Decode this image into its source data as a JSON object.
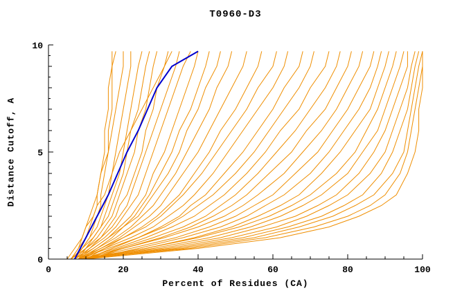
{
  "chart_data": {
    "type": "line",
    "title": "T0960-D3",
    "xlabel": "Percent of Residues (CA)",
    "ylabel": "Distance Cutoff, A",
    "xlim": [
      0,
      100
    ],
    "ylim": [
      0,
      10
    ],
    "x_ticks": [
      0,
      20,
      40,
      60,
      80,
      100
    ],
    "y_ticks": [
      0,
      5,
      10
    ],
    "x_minor_step": 5,
    "y_minor_step": 0.5,
    "grid": "off",
    "legend": "none",
    "colors": {
      "model": "#ef8e00",
      "highlight": "#0000cd",
      "axis": "#000000",
      "background": "#ffffff"
    },
    "y_grid": [
      0,
      0.5,
      1,
      1.5,
      2,
      2.5,
      3,
      4,
      5,
      6,
      7,
      8,
      9,
      9.7
    ],
    "highlight_series": {
      "x": [
        7,
        8.5,
        10,
        11.5,
        13,
        14.5,
        16,
        18.5,
        21,
        24,
        26.5,
        29,
        33,
        40
      ]
    },
    "series": [
      {
        "x": [
          6,
          8,
          10,
          11,
          12,
          13,
          13,
          14,
          15,
          15,
          16,
          16,
          17,
          17
        ]
      },
      {
        "x": [
          7,
          9,
          11,
          12,
          13,
          14,
          14,
          15,
          16,
          16,
          17,
          17,
          17,
          18
        ]
      },
      {
        "x": [
          6,
          8,
          9,
          10,
          11,
          12,
          13,
          14,
          16,
          17,
          18,
          19,
          20,
          20
        ]
      },
      {
        "x": [
          7,
          9,
          11,
          13,
          14,
          15,
          16,
          17,
          18,
          19,
          20,
          21,
          22,
          22
        ]
      },
      {
        "x": [
          8,
          10,
          12,
          14,
          15,
          16,
          17,
          19,
          20,
          21,
          22,
          23,
          24,
          25
        ]
      },
      {
        "x": [
          6,
          9,
          12,
          14,
          16,
          17,
          18,
          20,
          21,
          22,
          24,
          25,
          26,
          27
        ]
      },
      {
        "x": [
          7,
          10,
          13,
          15,
          17,
          18,
          19,
          21,
          23,
          24,
          26,
          27,
          28,
          29
        ]
      },
      {
        "x": [
          8,
          11,
          14,
          16,
          18,
          19,
          21,
          23,
          25,
          26,
          28,
          29,
          31,
          32
        ]
      },
      {
        "x": [
          6,
          10,
          14,
          17,
          19,
          21,
          22,
          24,
          26,
          28,
          30,
          32,
          34,
          35
        ]
      },
      {
        "x": [
          7,
          11,
          15,
          18,
          20,
          22,
          24,
          26,
          28,
          30,
          32,
          34,
          36,
          38
        ]
      },
      {
        "x": [
          8,
          12,
          16,
          19,
          22,
          24,
          26,
          28,
          31,
          33,
          35,
          37,
          39,
          40
        ]
      },
      {
        "x": [
          9,
          13,
          17,
          20,
          23,
          25,
          27,
          30,
          33,
          35,
          38,
          40,
          42,
          43
        ]
      },
      {
        "x": [
          7,
          12,
          16,
          20,
          24,
          26,
          28,
          32,
          35,
          37,
          40,
          42,
          45,
          46
        ]
      },
      {
        "x": [
          8,
          13,
          18,
          22,
          25,
          28,
          30,
          34,
          37,
          40,
          43,
          45,
          48,
          49
        ]
      },
      {
        "x": [
          9,
          14,
          19,
          23,
          27,
          30,
          32,
          36,
          40,
          43,
          46,
          49,
          52,
          53
        ]
      },
      {
        "x": [
          10,
          15,
          20,
          25,
          29,
          32,
          35,
          39,
          43,
          46,
          50,
          53,
          56,
          57
        ]
      },
      {
        "x": [
          8,
          14,
          20,
          26,
          30,
          33,
          36,
          41,
          45,
          49,
          53,
          56,
          60,
          61
        ]
      },
      {
        "x": [
          9,
          15,
          22,
          28,
          32,
          36,
          39,
          44,
          48,
          52,
          56,
          60,
          63,
          64
        ]
      },
      {
        "x": [
          10,
          17,
          24,
          30,
          35,
          38,
          42,
          47,
          52,
          56,
          60,
          63,
          67,
          68
        ]
      },
      {
        "x": [
          8,
          16,
          24,
          31,
          36,
          40,
          44,
          50,
          55,
          59,
          63,
          67,
          70,
          71
        ]
      },
      {
        "x": [
          9,
          18,
          26,
          33,
          39,
          43,
          47,
          53,
          58,
          62,
          67,
          70,
          74,
          75
        ]
      },
      {
        "x": [
          10,
          19,
          28,
          36,
          42,
          46,
          50,
          56,
          61,
          66,
          70,
          74,
          77,
          78
        ]
      },
      {
        "x": [
          11,
          20,
          30,
          38,
          44,
          49,
          53,
          59,
          65,
          69,
          74,
          77,
          80,
          81
        ]
      },
      {
        "x": [
          9,
          20,
          31,
          40,
          47,
          52,
          56,
          63,
          68,
          73,
          77,
          80,
          83,
          84
        ]
      },
      {
        "x": [
          10,
          22,
          34,
          43,
          50,
          55,
          60,
          66,
          72,
          76,
          80,
          83,
          86,
          87
        ]
      },
      {
        "x": [
          11,
          24,
          36,
          46,
          53,
          58,
          63,
          70,
          75,
          79,
          83,
          86,
          88,
          89
        ]
      },
      {
        "x": [
          9,
          26,
          39,
          49,
          56,
          62,
          67,
          73,
          78,
          82,
          86,
          88,
          90,
          91
        ]
      },
      {
        "x": [
          8,
          26,
          40,
          51,
          59,
          65,
          70,
          77,
          82,
          85,
          88,
          90,
          92,
          93
        ]
      },
      {
        "x": [
          9,
          28,
          43,
          54,
          62,
          68,
          73,
          80,
          84,
          88,
          90,
          92,
          94,
          95
        ]
      },
      {
        "x": [
          8,
          30,
          46,
          57,
          66,
          72,
          77,
          83,
          87,
          90,
          92,
          94,
          96,
          96
        ]
      },
      {
        "x": [
          9,
          32,
          49,
          61,
          69,
          75,
          80,
          86,
          90,
          92,
          94,
          96,
          97,
          98
        ]
      },
      {
        "x": [
          8,
          34,
          52,
          64,
          73,
          79,
          84,
          89,
          92,
          94,
          96,
          97,
          98,
          99
        ]
      },
      {
        "x": [
          9,
          36,
          55,
          67,
          76,
          82,
          87,
          92,
          95,
          96,
          97,
          98,
          99,
          100
        ]
      },
      {
        "x": [
          8,
          38,
          58,
          71,
          80,
          86,
          90,
          94,
          96,
          97,
          98,
          99,
          100,
          100
        ]
      },
      {
        "x": [
          10,
          40,
          62,
          75,
          83,
          89,
          93,
          96,
          98,
          99,
          99,
          100,
          100,
          100
        ]
      },
      {
        "x": [
          5,
          7,
          9,
          10,
          12,
          13,
          15,
          17,
          19,
          22,
          25,
          28,
          31,
          33
        ]
      }
    ]
  }
}
